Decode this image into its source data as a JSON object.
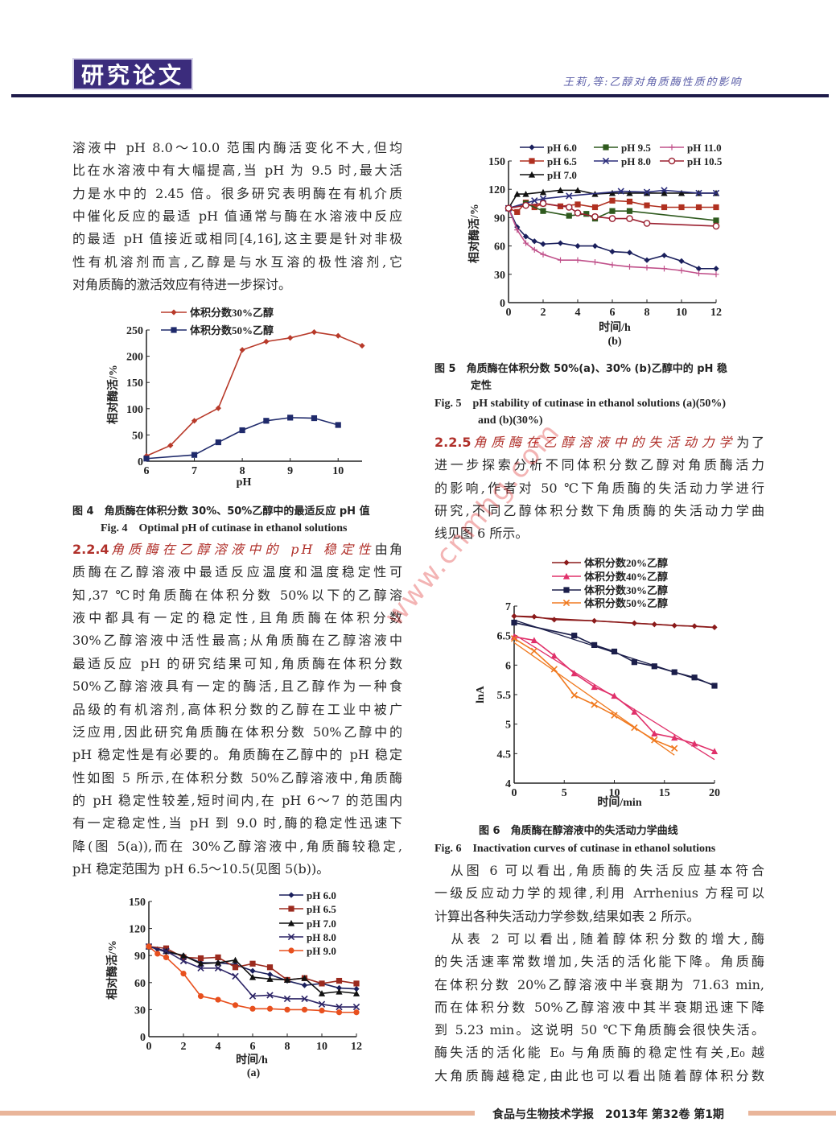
{
  "header": {
    "section_badge": "研究论文",
    "running_head": "王莉,等:乙醇对角质酶性质的影响"
  },
  "left": {
    "para1": [
      "溶液中 pH 8.0～10.0 范围内酶活变化不大,但均",
      "比在水溶液中有大幅提高,当 pH 为 9.5 时,最大活",
      "力是水中的 2.45 倍。很多研究表明酶在有机介质",
      "中催化反应的最适 pH 值通常与酶在水溶液中反应",
      "的最适 pH 值接近或相同[4,16],这主要是针对非极",
      "性有机溶剂而言,乙醇是与水互溶的极性溶剂,它",
      "对角质酶的激活效应有待进一步探讨。"
    ],
    "fig4_caption_cn": "图 4　角质酶在体积分数 30%、50%乙醇中的最适反应 pH 值",
    "fig4_caption_en": "Fig. 4　Optimal pH of cutinase in ethanol solutions",
    "sec224": {
      "num": "2.2.4",
      "title": "角质酶在乙醇溶液中的 pH 稳定性",
      "lead": "由角",
      "lines": [
        "质酶在乙醇溶液中最适反应温度和温度稳定性可",
        "知,37 ℃时角质酶在体积分数 50%以下的乙醇溶",
        "液中都具有一定的稳定性,且角质酶在体积分数",
        "30%乙醇溶液中活性最高;从角质酶在乙醇溶液中",
        "最适反应 pH 的研究结果可知,角质酶在体积分数",
        "50%乙醇溶液具有一定的酶活,且乙醇作为一种食",
        "品级的有机溶剂,高体积分数的乙醇在工业中被广",
        "泛应用,因此研究角质酶在体积分数 50%乙醇中的",
        "pH 稳定性是有必要的。角质酶在乙醇中的 pH 稳定",
        "性如图 5 所示,在体积分数 50%乙醇溶液中,角质酶",
        "的 pH 稳定性较差,短时间内,在 pH 6～7 的范围内",
        "有一定稳定性,当 pH 到 9.0 时,酶的稳定性迅速下",
        "降(图 5(a)),而在 30%乙醇溶液中,角质酶较稳定,",
        "pH 稳定范围为 pH 6.5～10.5(见图 5(b))。"
      ]
    }
  },
  "right": {
    "fig5_caption_cn_1": "图 5　角质酶在体积分数 50%(a)、30% (b)乙醇中的 pH 稳",
    "fig5_caption_cn_2": "定性",
    "fig5_caption_en_1": "Fig. 5　pH stability of cutinase in ethanol solutions (a)(50%)",
    "fig5_caption_en_2": "and (b)(30%)",
    "sec225": {
      "num": "2.2.5",
      "title": "角质酶在乙醇溶液中的失活动力学",
      "lead": "为了",
      "lines": [
        "进一步探索分析不同体积分数乙醇对角质酶活力",
        "的影响,作者对 50 ℃下角质酶的失活动力学进行",
        "研究,不同乙醇体积分数下角质酶的失活动力学曲",
        "线见图 6 所示。"
      ]
    },
    "fig6_caption_cn": "图 6　角质酶在醇溶液中的失活动力学曲线",
    "fig6_caption_en": "Fig. 6　Inactivation curves of cutinase in ethanol solutions",
    "para_after": [
      "　从图 6 可以看出,角质酶的失活反应基本符合",
      "一级反应动力学的规律,利用 Arrhenius 方程可以",
      "计算出各种失活动力学参数,结果如表 2 所示。",
      "　从表 2 可以看出,随着醇体积分数的增大,酶",
      "的失活速率常数增加,失活的活化能下降。角质酶",
      "在体积分数 20%乙醇溶液中半衰期为 71.63 min,",
      "而在体积分数 50%乙醇溶液中其半衰期迅速下降",
      "到 5.23 min。这说明 50 ℃下角质酶会很快失活。",
      "酶失活的活化能 E₀ 与角质酶的稳定性有关,E₀ 越",
      "大角质酶越稳定,由此也可以看出随着醇体积分数"
    ]
  },
  "watermark": "www.cnmhg.com",
  "footer": "食品与生物技术学报　2013年 第32卷 第1期",
  "chart_data": [
    {
      "type": "line",
      "id": "fig4",
      "xlabel": "pH",
      "ylabel": "相对酶活/%",
      "xlim": [
        6,
        10.5
      ],
      "ylim": [
        0,
        250
      ],
      "xticks": [
        6,
        7,
        8,
        9,
        10
      ],
      "yticks": [
        0,
        50,
        100,
        150,
        200,
        250
      ],
      "legend": "top-left",
      "series": [
        {
          "name": "体积分数30%乙醇",
          "color": "#b83a2a",
          "marker": "diamond",
          "x": [
            6,
            6.5,
            7,
            7.5,
            8,
            8.5,
            9,
            9.5,
            10,
            10.5
          ],
          "y": [
            10,
            30,
            77,
            101,
            212,
            228,
            235,
            246,
            239,
            220
          ]
        },
        {
          "name": "体积分数50%乙醇",
          "color": "#1f2a6b",
          "marker": "square",
          "x": [
            6,
            7,
            7.5,
            8,
            8.5,
            9,
            9.5,
            10
          ],
          "y": [
            5,
            12,
            36,
            59,
            77,
            83,
            82,
            69
          ]
        }
      ]
    },
    {
      "type": "line",
      "id": "fig5b",
      "subtitle": "(b)",
      "xlabel": "时间/h",
      "ylabel": "相对酶活/%",
      "xlim": [
        0,
        12
      ],
      "ylim": [
        0,
        150
      ],
      "xticks": [
        0,
        2,
        4,
        6,
        8,
        10,
        12
      ],
      "yticks": [
        0,
        30,
        60,
        90,
        120,
        150
      ],
      "legend": "top",
      "series": [
        {
          "name": "pH 6.0",
          "color": "#1a1f5c",
          "marker": "diamond",
          "x": [
            0,
            0.5,
            1,
            1.5,
            2,
            3,
            4,
            5,
            6,
            7,
            8,
            9,
            10,
            11,
            12
          ],
          "y": [
            100,
            80,
            70,
            65,
            62,
            63,
            60,
            60,
            54,
            53,
            45,
            50,
            44,
            36,
            36
          ]
        },
        {
          "name": "pH 6.5",
          "color": "#b03020",
          "marker": "square",
          "x": [
            0,
            0.5,
            1,
            1.5,
            2,
            3,
            4,
            5,
            6,
            7,
            8,
            9,
            10,
            11,
            12
          ],
          "y": [
            100,
            96,
            106,
            101,
            105,
            102,
            104,
            101,
            108,
            107,
            103,
            101,
            101,
            101,
            101
          ]
        },
        {
          "name": "pH 7.0",
          "color": "#111111",
          "marker": "triangle",
          "x": [
            0,
            0.5,
            1,
            2,
            3,
            4,
            5,
            6,
            7,
            8,
            9,
            10,
            11,
            12
          ],
          "y": [
            100,
            115,
            115,
            117,
            119,
            119,
            115,
            116,
            116,
            116,
            116,
            116,
            116,
            116
          ]
        },
        {
          "name": "pH 9.5",
          "color": "#2f5a1e",
          "marker": "square",
          "x": [
            0,
            1,
            2,
            3.5,
            4.5,
            5,
            6,
            7,
            12
          ],
          "y": [
            100,
            105,
            97,
            92,
            94,
            89,
            97,
            97,
            87
          ]
        },
        {
          "name": "pH 8.0",
          "color": "#2b2d7a",
          "marker": "x",
          "x": [
            0,
            1.5,
            2,
            3.5,
            6.5,
            8,
            9,
            11,
            12
          ],
          "y": [
            100,
            108,
            110,
            113,
            118,
            117,
            119,
            116,
            116
          ]
        },
        {
          "name": "pH 11.0",
          "color": "#c0508a",
          "marker": "plus",
          "x": [
            0,
            0.5,
            1,
            1.5,
            2,
            3,
            4,
            5,
            6,
            7,
            8,
            9,
            10,
            11,
            12
          ],
          "y": [
            100,
            77,
            63,
            56,
            51,
            45,
            45,
            43,
            40,
            38,
            37,
            36,
            34,
            31,
            30
          ]
        },
        {
          "name": "pH 10.5",
          "color": "#9b2030",
          "marker": "circle",
          "x": [
            0,
            1,
            2,
            3.5,
            4,
            5,
            6,
            7,
            8,
            12
          ],
          "y": [
            100,
            103,
            105,
            101,
            95,
            91,
            89,
            89,
            84,
            81
          ]
        }
      ]
    },
    {
      "type": "line",
      "id": "fig5a",
      "subtitle": "(a)",
      "xlabel": "时间/h",
      "ylabel": "相对酶活/%",
      "xlim": [
        0,
        12
      ],
      "ylim": [
        0,
        150
      ],
      "xticks": [
        0,
        2,
        4,
        6,
        8,
        10,
        12
      ],
      "yticks": [
        0,
        30,
        60,
        90,
        120,
        150
      ],
      "legend": "top-right",
      "series": [
        {
          "name": "pH 6.0",
          "color": "#1a1f5c",
          "marker": "diamond",
          "x": [
            0,
            0.5,
            1,
            2,
            3,
            4,
            5,
            6,
            7,
            8,
            9,
            10,
            11,
            12
          ],
          "y": [
            100,
            97,
            94,
            90,
            82,
            82,
            80,
            73,
            69,
            62,
            57,
            59,
            54,
            53
          ]
        },
        {
          "name": "pH 6.5",
          "color": "#9b2a1e",
          "marker": "square",
          "x": [
            0,
            1,
            2,
            3,
            4,
            5,
            6,
            7,
            8,
            9,
            10,
            11,
            12
          ],
          "y": [
            100,
            98,
            88,
            87,
            88,
            77,
            81,
            77,
            63,
            65,
            59,
            62,
            59
          ]
        },
        {
          "name": "pH 7.0",
          "color": "#111111",
          "marker": "triangle",
          "x": [
            0,
            1,
            2,
            3,
            4,
            5,
            6,
            7,
            8,
            9,
            10,
            11,
            12
          ],
          "y": [
            100,
            95,
            90,
            81,
            82,
            85,
            66,
            64,
            63,
            65,
            48,
            50,
            48
          ]
        },
        {
          "name": "pH 8.0",
          "color": "#2c2466",
          "marker": "x",
          "x": [
            0,
            1,
            2,
            3,
            4,
            5,
            6,
            7,
            8,
            9,
            10,
            11,
            12
          ],
          "y": [
            100,
            95,
            84,
            76,
            76,
            67,
            45,
            46,
            42,
            42,
            36,
            33,
            33
          ]
        },
        {
          "name": "pH 9.0",
          "color": "#e8501e",
          "marker": "circle-filled",
          "x": [
            0,
            0.5,
            1,
            2,
            3,
            4,
            5,
            6,
            7,
            8,
            9,
            10,
            11,
            12
          ],
          "y": [
            100,
            92,
            88,
            70,
            45,
            41,
            35,
            31,
            31,
            30,
            30,
            29,
            27,
            27
          ]
        }
      ]
    },
    {
      "type": "line",
      "id": "fig6",
      "xlabel": "时间/min",
      "ylabel": "lnA",
      "xlim": [
        0,
        20
      ],
      "ylim": [
        4,
        7
      ],
      "xticks": [
        0,
        5,
        10,
        15,
        20
      ],
      "yticks": [
        4,
        4.5,
        5,
        5.5,
        6,
        6.5,
        7
      ],
      "legend": "top",
      "linear_fit": true,
      "series": [
        {
          "name": "体积分数20%乙醇",
          "color": "#8b1a1a",
          "marker": "diamond",
          "x": [
            0,
            2,
            4,
            8,
            12,
            14,
            16,
            18,
            20
          ],
          "y": [
            6.83,
            6.82,
            6.77,
            6.75,
            6.71,
            6.69,
            6.67,
            6.66,
            6.64
          ]
        },
        {
          "name": "体积分数40%乙醇",
          "color": "#e0306a",
          "marker": "triangle",
          "x": [
            0,
            2,
            4,
            6,
            8,
            10,
            12,
            14,
            16,
            18,
            20
          ],
          "y": [
            6.48,
            6.42,
            6.16,
            5.86,
            5.63,
            5.48,
            5.21,
            4.84,
            4.77,
            4.67,
            4.54
          ]
        },
        {
          "name": "体积分数30%乙醇",
          "color": "#1b1e4a",
          "marker": "square",
          "x": [
            0,
            6,
            8,
            10,
            12,
            14,
            16,
            18,
            20
          ],
          "y": [
            6.72,
            6.5,
            6.34,
            6.23,
            6.05,
            5.98,
            5.88,
            5.79,
            5.65
          ]
        },
        {
          "name": "体积分数50%乙醇",
          "color": "#f07a20",
          "marker": "x",
          "x": [
            0,
            2,
            4,
            6,
            8,
            10,
            12,
            14,
            16
          ],
          "y": [
            6.45,
            6.24,
            5.93,
            5.49,
            5.33,
            5.15,
            4.94,
            4.73,
            4.59
          ]
        }
      ]
    }
  ]
}
